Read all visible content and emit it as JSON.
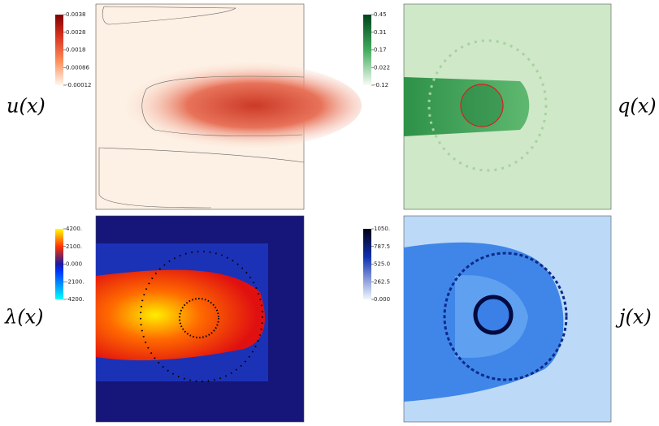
{
  "panels": [
    {
      "label": "u(x)",
      "colorbar": {
        "ticks": [
          "0.0038",
          "0.0028",
          "0.0018",
          "0.00086",
          "-0.00012"
        ]
      }
    },
    {
      "label": "q(x)",
      "colorbar": {
        "ticks": [
          "0.45",
          "0.31",
          "0.17",
          "0.022",
          "-0.12"
        ]
      }
    },
    {
      "label": "λ(x)",
      "colorbar": {
        "ticks": [
          "4200.",
          "2100.",
          "0.000",
          "-2100.",
          "-4200."
        ]
      }
    },
    {
      "label": "j(x)",
      "colorbar": {
        "ticks": [
          "1050.",
          "787.5",
          "525.0",
          "262.5",
          "0.000"
        ]
      }
    }
  ]
}
